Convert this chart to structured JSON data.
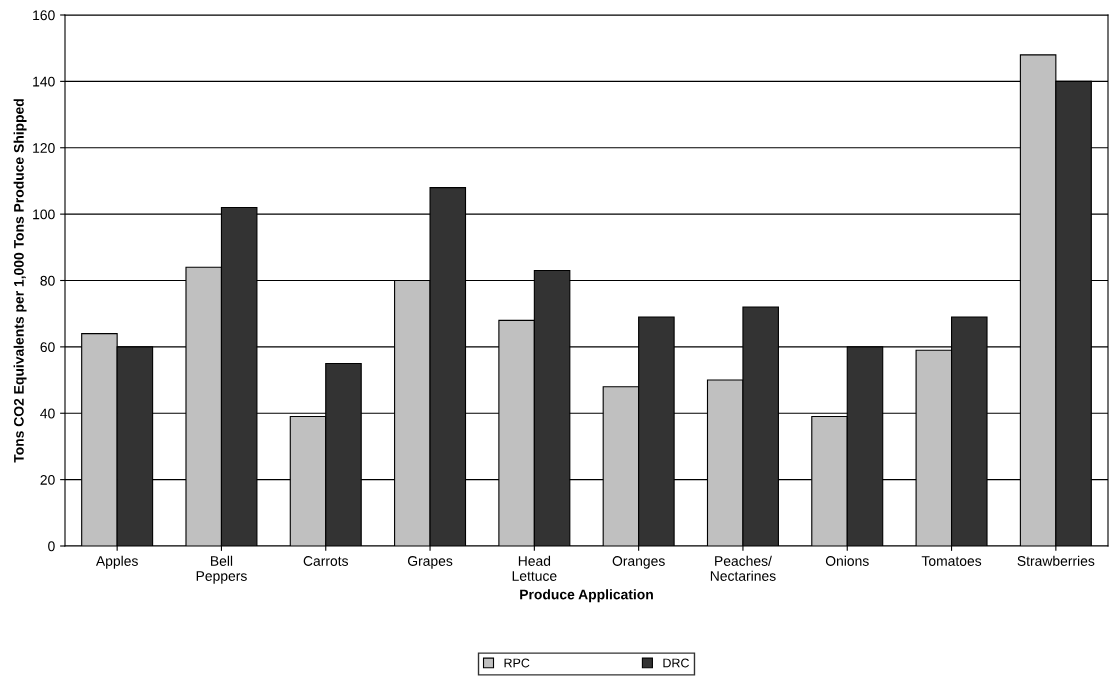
{
  "chart_data": {
    "type": "bar",
    "xlabel": "Produce Application",
    "ylabel": "Tons CO2 Equivalents per 1,000 Tons Produce Shipped",
    "categories": [
      "Apples",
      "Bell\nPeppers",
      "Carrots",
      "Grapes",
      "Head\nLettuce",
      "Oranges",
      "Peaches/\nNectarines",
      "Onions",
      "Tomatoes",
      "Strawberries"
    ],
    "series": [
      {
        "name": "RPC",
        "color": "#c0c0c0",
        "values": [
          64,
          84,
          39,
          80,
          68,
          48,
          50,
          39,
          59,
          148
        ]
      },
      {
        "name": "DRC",
        "color": "#333333",
        "values": [
          60,
          102,
          55,
          108,
          83,
          69,
          72,
          60,
          69,
          140
        ]
      }
    ],
    "ylim": [
      0,
      160
    ],
    "yticks": [
      0,
      20,
      40,
      60,
      80,
      100,
      120,
      140,
      160
    ],
    "grid": "y",
    "legend": "bottom"
  }
}
